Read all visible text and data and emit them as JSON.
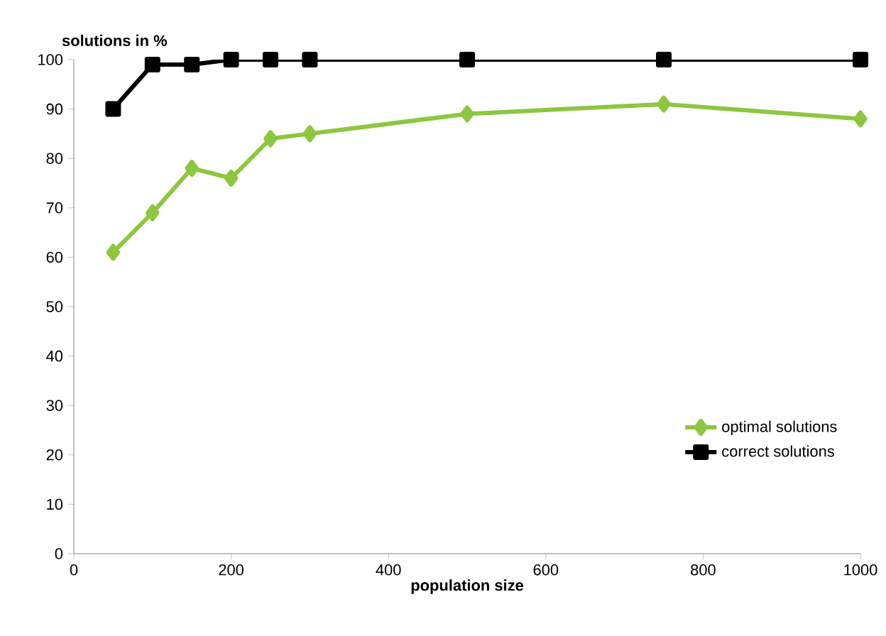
{
  "chart_data": {
    "type": "line",
    "xlabel": "population size",
    "ylabel": "solutions in %",
    "x": [
      50,
      100,
      150,
      200,
      250,
      300,
      500,
      750,
      1000
    ],
    "series": [
      {
        "name": "optimal solutions",
        "color": "#8dc63f",
        "marker": "diamond",
        "values": [
          61,
          69,
          78,
          76,
          84,
          85,
          89,
          91,
          88
        ]
      },
      {
        "name": "correct solutions",
        "color": "#000000",
        "marker": "square",
        "values": [
          90,
          99,
          99,
          100,
          100,
          100,
          100,
          100,
          100
        ]
      }
    ],
    "xlim": [
      0,
      1000
    ],
    "xticks": [
      0,
      200,
      400,
      600,
      800,
      1000
    ],
    "ylim": [
      0,
      100
    ],
    "yticks": [
      0,
      10,
      20,
      30,
      40,
      50,
      60,
      70,
      80,
      90,
      100
    ],
    "grid": false,
    "legend": "bottom right",
    "line_style": "solid"
  }
}
